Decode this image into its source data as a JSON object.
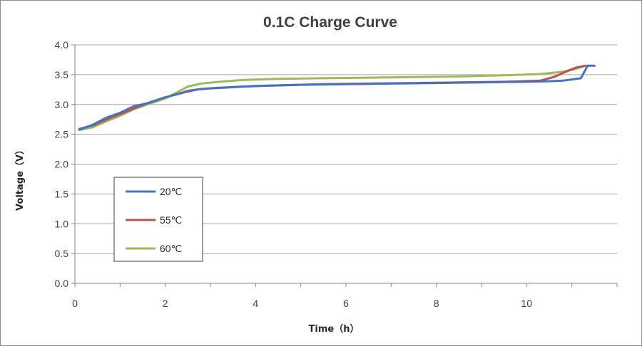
{
  "chart_data": {
    "type": "line",
    "title": "0.1C Charge Curve",
    "xlabel": "Time（h）",
    "ylabel": "Voltage（V）",
    "xlim": [
      0,
      12
    ],
    "ylim": [
      0,
      4.0
    ],
    "xticks": [
      0,
      2,
      4,
      6,
      8,
      10
    ],
    "yticks": [
      0.0,
      0.5,
      1.0,
      1.5,
      2.0,
      2.5,
      3.0,
      3.5,
      4.0
    ],
    "xtick_labels": [
      "0",
      "2",
      "4",
      "6",
      "8",
      "10"
    ],
    "ytick_labels": [
      "0.0",
      "0.5",
      "1.0",
      "1.5",
      "2.0",
      "2.5",
      "3.0",
      "3.5",
      "4.0"
    ],
    "grid": true,
    "legend_position": "left-middle",
    "series": [
      {
        "name": "20℃",
        "color": "#4472C4",
        "x": [
          0.1,
          0.4,
          0.7,
          1.0,
          1.3,
          1.6,
          2.0,
          2.4,
          2.7,
          3.0,
          3.5,
          4.0,
          5.0,
          6.0,
          7.0,
          8.0,
          9.0,
          10.0,
          10.5,
          10.8,
          11.0,
          11.2,
          11.35,
          11.5
        ],
        "values": [
          2.58,
          2.66,
          2.78,
          2.86,
          2.97,
          3.02,
          3.12,
          3.2,
          3.25,
          3.27,
          3.29,
          3.31,
          3.33,
          3.34,
          3.35,
          3.36,
          3.37,
          3.38,
          3.39,
          3.4,
          3.42,
          3.44,
          3.65,
          3.65
        ]
      },
      {
        "name": "55℃",
        "color": "#C0504D",
        "x": [
          0.1,
          0.4,
          0.7,
          1.0,
          1.3,
          1.6,
          2.0,
          2.3,
          2.5,
          2.8,
          3.2,
          3.7,
          4.5,
          5.5,
          6.5,
          7.5,
          8.5,
          9.5,
          10.3,
          10.6,
          10.9,
          11.1,
          11.3
        ],
        "values": [
          2.59,
          2.65,
          2.75,
          2.84,
          2.93,
          3.02,
          3.12,
          3.18,
          3.23,
          3.26,
          3.28,
          3.3,
          3.32,
          3.34,
          3.35,
          3.36,
          3.37,
          3.38,
          3.4,
          3.46,
          3.56,
          3.62,
          3.65
        ]
      },
      {
        "name": "60℃",
        "color": "#9BBB59",
        "x": [
          0.1,
          0.4,
          0.7,
          1.0,
          1.3,
          1.6,
          2.0,
          2.3,
          2.5,
          2.8,
          3.2,
          3.7,
          4.5,
          5.5,
          6.5,
          7.5,
          8.5,
          9.5,
          10.3,
          10.8,
          11.1,
          11.3
        ],
        "values": [
          2.57,
          2.62,
          2.72,
          2.81,
          2.92,
          3.0,
          3.1,
          3.22,
          3.3,
          3.35,
          3.38,
          3.41,
          3.43,
          3.44,
          3.45,
          3.46,
          3.47,
          3.49,
          3.51,
          3.55,
          3.6,
          3.65
        ]
      }
    ]
  }
}
